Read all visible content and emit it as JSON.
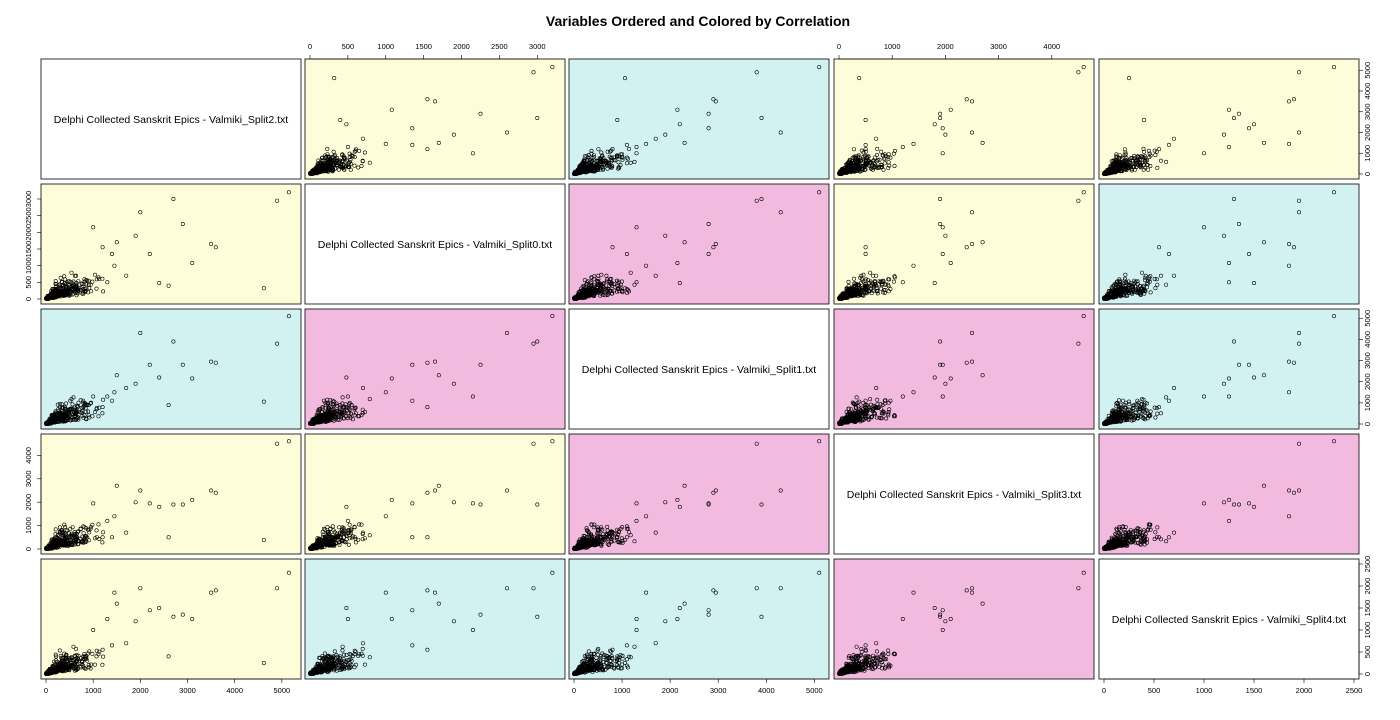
{
  "chart_data": {
    "type": "scatter",
    "title": "Variables Ordered and Colored by Correlation",
    "variables": [
      "Delphi Collected Sanskrit Epics - Valmiki_Split2.txt",
      "Delphi Collected Sanskrit Epics - Valmiki_Split0.txt",
      "Delphi Collected Sanskrit Epics - Valmiki_Split1.txt",
      "Delphi Collected Sanskrit Epics - Valmiki_Split3.txt",
      "Delphi Collected Sanskrit Epics - Valmiki_Split4.txt"
    ],
    "ranges": [
      [
        0,
        5300
      ],
      [
        0,
        3300
      ],
      [
        0,
        5200
      ],
      [
        0,
        4700
      ],
      [
        0,
        2500
      ]
    ],
    "ticks": [
      [
        "0",
        "1000",
        "2000",
        "3000",
        "4000",
        "5000"
      ],
      [
        "0",
        "500",
        "1000",
        "1500",
        "2000",
        "2500",
        "3000"
      ],
      [
        "0",
        "1000",
        "2000",
        "3000",
        "4000",
        "5000"
      ],
      [
        "0",
        "1000",
        "2000",
        "3000",
        "4000"
      ],
      [
        "0",
        "500",
        "1000",
        "1500",
        "2000",
        "2500"
      ]
    ],
    "panel_colors": {
      "row0": [
        "",
        "#fdfdd9",
        "#d2f1f1",
        "#fdfdd9",
        "#fdfdd9"
      ],
      "row1": [
        "#fdfdd9",
        "",
        "#f2bade",
        "#fdfdd9",
        "#d2f1f1"
      ],
      "row2": [
        "#d2f1f1",
        "#f2bade",
        "",
        "#f2bade",
        "#d2f1f1"
      ],
      "row3": [
        "#fdfdd9",
        "#fdfdd9",
        "#f2bade",
        "",
        "#f2bade"
      ],
      "row4": [
        "#fdfdd9",
        "#d2f1f1",
        "#d2f1f1",
        "#f2bade",
        ""
      ]
    },
    "highlight_points": [
      [
        5150,
        3200,
        5100,
        4600,
        2300
      ],
      [
        4620,
        320,
        1060,
        380,
        250
      ],
      [
        4900,
        2950,
        3800,
        4500,
        1950
      ],
      [
        3600,
        1550,
        2900,
        2400,
        1900
      ],
      [
        3500,
        1650,
        2950,
        2500,
        1850
      ],
      [
        3100,
        1080,
        2150,
        2100,
        1250
      ],
      [
        2900,
        2250,
        2800,
        1900,
        1350
      ],
      [
        2700,
        3000,
        3900,
        1900,
        1300
      ],
      [
        2200,
        1350,
        2800,
        1950,
        1450
      ],
      [
        2000,
        2600,
        4300,
        2500,
        1950
      ],
      [
        1900,
        1900,
        1900,
        2000,
        1200
      ],
      [
        1500,
        1700,
        2300,
        2700,
        1600
      ],
      [
        1450,
        1000,
        1500,
        1400,
        1850
      ],
      [
        1400,
        1350,
        1100,
        500,
        650
      ],
      [
        1300,
        500,
        1300,
        1200,
        1250
      ],
      [
        1200,
        1550,
        800,
        500,
        550
      ],
      [
        2400,
        480,
        2200,
        1800,
        1500
      ],
      [
        1000,
        2150,
        1300,
        1950,
        1000
      ],
      [
        1700,
        700,
        1700,
        700,
        700
      ],
      [
        2600,
        400,
        900,
        500,
        400
      ]
    ],
    "grid": false,
    "legend": "none"
  }
}
